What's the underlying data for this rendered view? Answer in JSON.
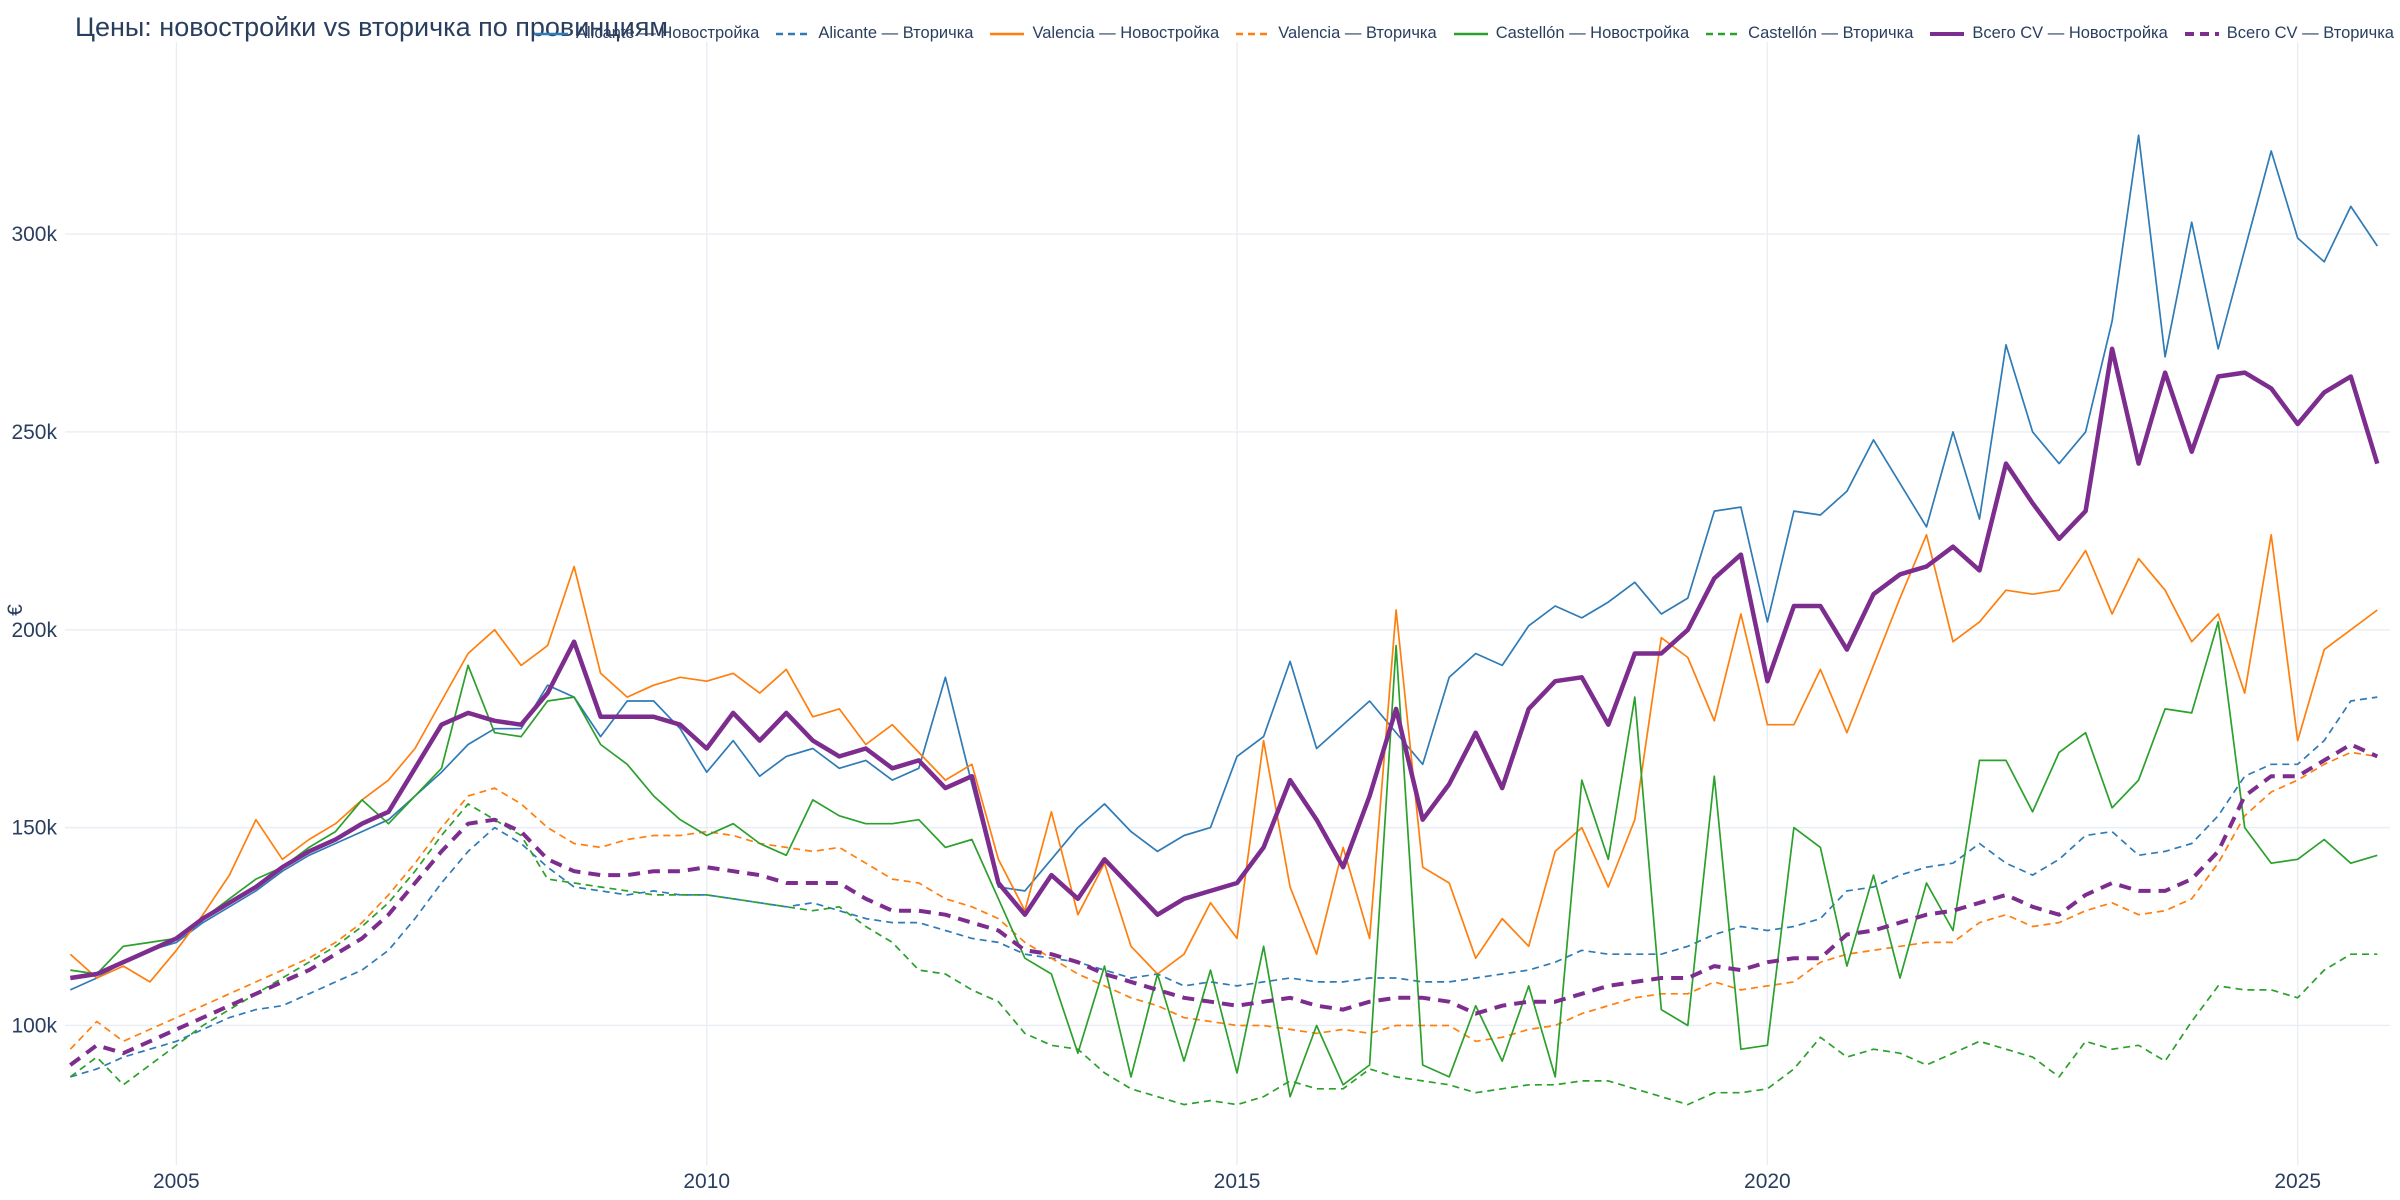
{
  "page": {
    "title": "Цены: новостройки vs вторичка по провинциям"
  },
  "chart_data": {
    "type": "line",
    "title": "Цены: новостройки vs вторичка по провинциям",
    "xlabel": "",
    "ylabel": "€",
    "grid": true,
    "legend_position": "top-right",
    "background": "#ffffff",
    "grid_color": "#e9eef4",
    "text_color": "#2a3f5f",
    "x_start": 2004.0,
    "x_step": 0.25,
    "xlim": [
      2003.95,
      2025.87
    ],
    "ylim": [
      66,
      344
    ],
    "x_ticks": [
      {
        "value": 2005,
        "label": "2005"
      },
      {
        "value": 2010,
        "label": "2010"
      },
      {
        "value": 2015,
        "label": "2015"
      },
      {
        "value": 2020,
        "label": "2020"
      },
      {
        "value": 2025,
        "label": "2025"
      }
    ],
    "y_ticks": [
      {
        "value": 100,
        "label": "100k"
      },
      {
        "value": 150,
        "label": "150k"
      },
      {
        "value": 200,
        "label": "200k"
      },
      {
        "value": 250,
        "label": "250k"
      },
      {
        "value": 300,
        "label": "300k"
      }
    ],
    "units": "thousands of EUR",
    "series": [
      {
        "name": "Alicante — Новостройка",
        "color": "#2f7bb6",
        "dash": false,
        "width": 1.7,
        "values": [
          109,
          112,
          116,
          119,
          121,
          126,
          130,
          134,
          139,
          143,
          146,
          149,
          152,
          158,
          164,
          171,
          175,
          175,
          186,
          183,
          173,
          182,
          182,
          175,
          164,
          172,
          163,
          168,
          170,
          165,
          167,
          162,
          165,
          188,
          161,
          135,
          134,
          142,
          150,
          156,
          149,
          144,
          148,
          150,
          168,
          173,
          192,
          170,
          176,
          182,
          174,
          166,
          188,
          194,
          191,
          201,
          206,
          203,
          207,
          212,
          204,
          208,
          230,
          231,
          202,
          230,
          229,
          235,
          248,
          237,
          226,
          250,
          228,
          272,
          250,
          242,
          250,
          278,
          325,
          269,
          303,
          271,
          296,
          321,
          299,
          293,
          307,
          297
        ]
      },
      {
        "name": "Alicante — Вторичка",
        "color": "#2f7bb6",
        "dash": true,
        "width": 1.7,
        "values": [
          87,
          89,
          92,
          94,
          96,
          99,
          102,
          104,
          105,
          108,
          111,
          114,
          119,
          127,
          136,
          144,
          150,
          146,
          140,
          135,
          134,
          133,
          134,
          133,
          133,
          132,
          131,
          130,
          131,
          129,
          127,
          126,
          126,
          124,
          122,
          121,
          118,
          117,
          116,
          114,
          112,
          113,
          110,
          111,
          110,
          111,
          112,
          111,
          111,
          112,
          112,
          111,
          111,
          112,
          113,
          114,
          116,
          119,
          118,
          118,
          118,
          120,
          123,
          125,
          124,
          125,
          127,
          134,
          135,
          138,
          140,
          141,
          146,
          141,
          138,
          142,
          148,
          149,
          143,
          144,
          146,
          153,
          163,
          166,
          166,
          172,
          182,
          183
        ]
      },
      {
        "name": "Valencia — Новостройка",
        "color": "#ff7f0e",
        "dash": false,
        "width": 1.7,
        "values": [
          118,
          112,
          115,
          111,
          119,
          128,
          138,
          152,
          142,
          147,
          151,
          157,
          162,
          170,
          182,
          194,
          200,
          191,
          196,
          216,
          189,
          183,
          186,
          188,
          187,
          189,
          184,
          190,
          178,
          180,
          171,
          176,
          169,
          162,
          166,
          142,
          129,
          154,
          128,
          141,
          120,
          113,
          118,
          131,
          122,
          172,
          135,
          118,
          145,
          122,
          205,
          140,
          136,
          117,
          127,
          120,
          144,
          150,
          135,
          152,
          198,
          193,
          177,
          204,
          176,
          176,
          190,
          174,
          191,
          208,
          224,
          197,
          202,
          210,
          209,
          210,
          220,
          204,
          218,
          210,
          197,
          204,
          184,
          224,
          172,
          195,
          200,
          205
        ]
      },
      {
        "name": "Valencia — Вторичка",
        "color": "#ff7f0e",
        "dash": true,
        "width": 1.7,
        "values": [
          94,
          101,
          96,
          99,
          102,
          105,
          108,
          111,
          114,
          117,
          121,
          126,
          133,
          141,
          150,
          158,
          160,
          156,
          150,
          146,
          145,
          147,
          148,
          148,
          149,
          148,
          146,
          145,
          144,
          145,
          141,
          137,
          136,
          132,
          130,
          127,
          121,
          117,
          113,
          110,
          107,
          105,
          102,
          101,
          100,
          100,
          99,
          98,
          99,
          98,
          100,
          100,
          100,
          96,
          97,
          99,
          100,
          103,
          105,
          107,
          108,
          108,
          111,
          109,
          110,
          111,
          116,
          118,
          119,
          120,
          121,
          121,
          126,
          128,
          125,
          126,
          129,
          131,
          128,
          129,
          132,
          141,
          153,
          159,
          162,
          166,
          169,
          168
        ]
      },
      {
        "name": "Castellón — Новостройка",
        "color": "#2ca02c",
        "dash": false,
        "width": 1.7,
        "values": [
          114,
          113,
          120,
          121,
          122,
          127,
          132,
          137,
          140,
          145,
          149,
          157,
          151,
          158,
          165,
          191,
          174,
          173,
          182,
          183,
          171,
          166,
          158,
          152,
          148,
          151,
          146,
          143,
          157,
          153,
          151,
          151,
          152,
          145,
          147,
          132,
          117,
          113,
          93,
          115,
          87,
          113,
          91,
          114,
          88,
          120,
          82,
          100,
          85,
          90,
          196,
          90,
          87,
          105,
          91,
          110,
          87,
          162,
          142,
          183,
          104,
          100,
          163,
          94,
          95,
          150,
          145,
          115,
          138,
          112,
          136,
          124,
          167,
          167,
          154,
          169,
          174,
          155,
          162,
          180,
          179,
          202,
          150,
          141,
          142,
          147,
          141,
          143
        ]
      },
      {
        "name": "Castellón — Вторичка",
        "color": "#2ca02c",
        "dash": true,
        "width": 1.7,
        "values": [
          87,
          92,
          85,
          90,
          95,
          100,
          104,
          108,
          112,
          116,
          120,
          125,
          131,
          139,
          148,
          156,
          152,
          148,
          137,
          136,
          135,
          134,
          133,
          133,
          133,
          132,
          131,
          130,
          129,
          130,
          125,
          121,
          114,
          113,
          109,
          106,
          98,
          95,
          94,
          88,
          84,
          82,
          80,
          81,
          80,
          82,
          86,
          84,
          84,
          89,
          87,
          86,
          85,
          83,
          84,
          85,
          85,
          86,
          86,
          84,
          82,
          80,
          83,
          83,
          84,
          89,
          97,
          92,
          94,
          93,
          90,
          93,
          96,
          94,
          92,
          87,
          96,
          94,
          95,
          91,
          101,
          110,
          109,
          109,
          107,
          114,
          118,
          118
        ]
      },
      {
        "name": "Всего CV — Новостройка",
        "color": "#7c2d8e",
        "dash": false,
        "width": 4.5,
        "values": [
          112,
          113,
          116,
          119,
          122,
          127,
          131,
          135,
          140,
          144,
          147,
          151,
          154,
          165,
          176,
          179,
          177,
          176,
          184,
          197,
          178,
          178,
          178,
          176,
          170,
          179,
          172,
          179,
          172,
          168,
          170,
          165,
          167,
          160,
          163,
          136,
          128,
          138,
          132,
          142,
          135,
          128,
          132,
          134,
          136,
          145,
          162,
          152,
          140,
          158,
          180,
          152,
          161,
          174,
          160,
          180,
          187,
          188,
          176,
          194,
          194,
          200,
          213,
          219,
          187,
          206,
          206,
          195,
          209,
          214,
          216,
          221,
          215,
          242,
          232,
          223,
          230,
          271,
          242,
          265,
          245,
          264,
          265,
          261,
          252,
          260,
          264,
          242
        ]
      },
      {
        "name": "Всего CV — Вторичка",
        "color": "#7c2d8e",
        "dash": true,
        "width": 4.0,
        "values": [
          90,
          95,
          93,
          96,
          99,
          102,
          105,
          108,
          111,
          114,
          118,
          122,
          128,
          136,
          144,
          151,
          152,
          149,
          142,
          139,
          138,
          138,
          139,
          139,
          140,
          139,
          138,
          136,
          136,
          136,
          132,
          129,
          129,
          128,
          126,
          124,
          119,
          118,
          116,
          113,
          111,
          109,
          107,
          106,
          105,
          106,
          107,
          105,
          104,
          106,
          107,
          107,
          106,
          103,
          105,
          106,
          106,
          108,
          110,
          111,
          112,
          112,
          115,
          114,
          116,
          117,
          117,
          123,
          124,
          126,
          128,
          129,
          131,
          133,
          130,
          128,
          133,
          136,
          134,
          134,
          137,
          144,
          158,
          163,
          163,
          167,
          171,
          168
        ]
      }
    ]
  }
}
